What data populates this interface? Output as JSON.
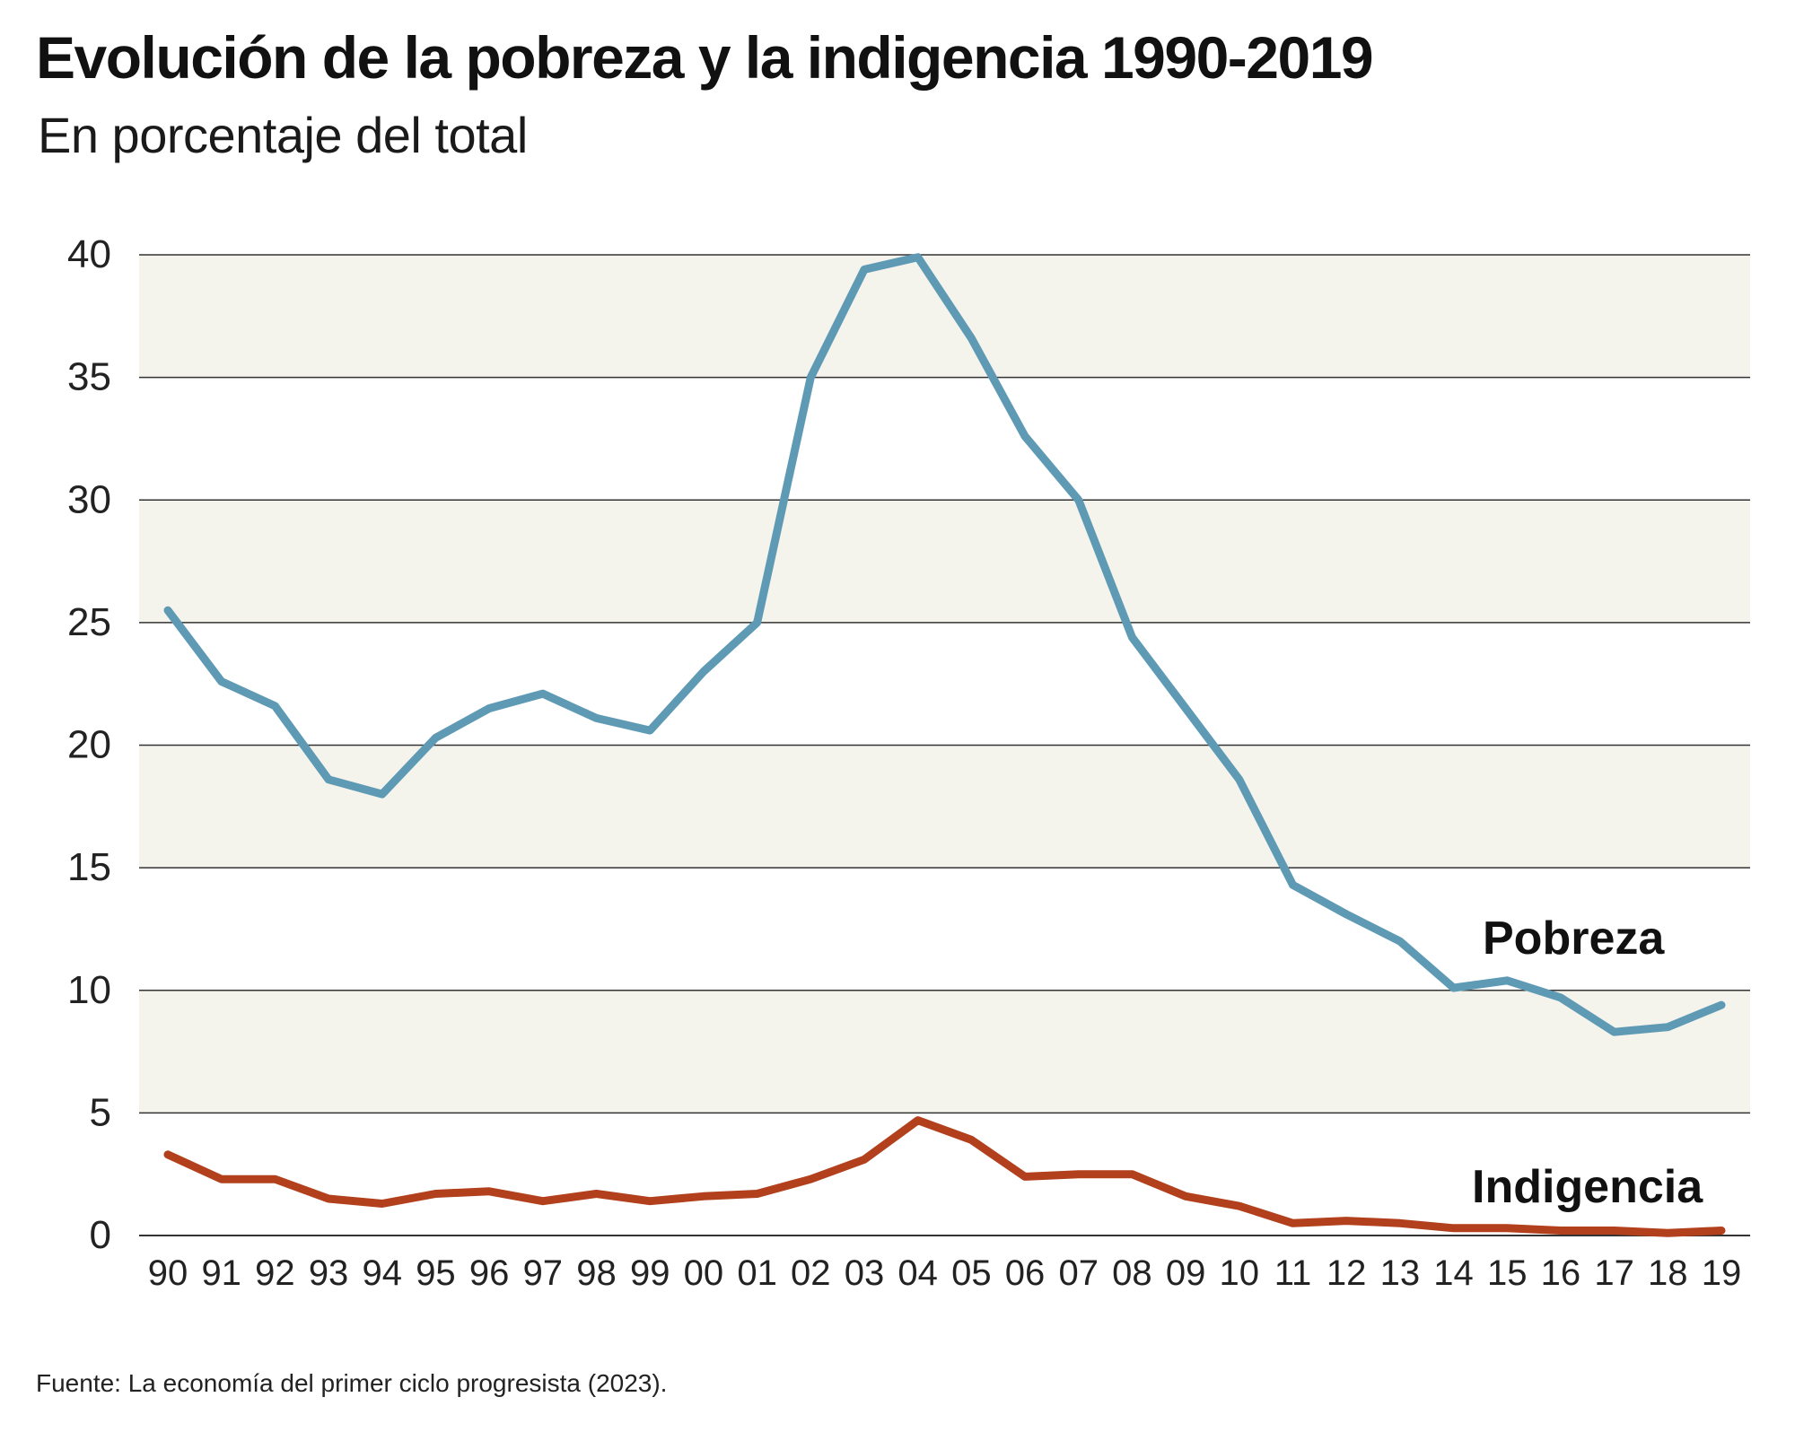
{
  "title": "Evolución de la pobreza y la indigencia 1990-2019",
  "subtitle": "En porcentaje del total",
  "source": "Fuente: La economía del primer ciclo progresista (2023).",
  "colors": {
    "pobreza": "#5f9ab5",
    "indigencia": "#b2401c",
    "band": "#f4f3ec",
    "grid": "#333333"
  },
  "chart_data": {
    "type": "line",
    "title": "Evolución de la pobreza y la indigencia 1990-2019",
    "subtitle": "En porcentaje del total",
    "xlabel": "",
    "ylabel": "",
    "x": [
      "90",
      "91",
      "92",
      "93",
      "94",
      "95",
      "96",
      "97",
      "98",
      "99",
      "00",
      "01",
      "02",
      "03",
      "04",
      "05",
      "06",
      "07",
      "08",
      "09",
      "10",
      "11",
      "12",
      "13",
      "14",
      "15",
      "16",
      "17",
      "18",
      "19"
    ],
    "ylim": [
      0,
      40
    ],
    "yticks": [
      0,
      5,
      10,
      15,
      20,
      25,
      30,
      35,
      40
    ],
    "grid": true,
    "alternating_bands": true,
    "series": [
      {
        "name": "Pobreza",
        "color": "#5f9ab5",
        "values": [
          25.5,
          22.6,
          21.6,
          18.6,
          18.0,
          20.3,
          21.5,
          22.1,
          21.1,
          20.6,
          23.0,
          25.0,
          35.0,
          39.4,
          39.9,
          36.6,
          32.6,
          30.0,
          24.4,
          21.5,
          18.6,
          14.3,
          13.1,
          12.0,
          10.1,
          10.4,
          9.7,
          8.3,
          8.5,
          9.4
        ]
      },
      {
        "name": "Indigencia",
        "color": "#b2401c",
        "values": [
          3.3,
          2.3,
          2.3,
          1.5,
          1.3,
          1.7,
          1.8,
          1.4,
          1.7,
          1.4,
          1.6,
          1.7,
          2.3,
          3.1,
          4.7,
          3.9,
          2.4,
          2.5,
          2.5,
          1.6,
          1.2,
          0.5,
          0.6,
          0.5,
          0.3,
          0.3,
          0.2,
          0.2,
          0.1,
          0.2
        ]
      }
    ]
  }
}
